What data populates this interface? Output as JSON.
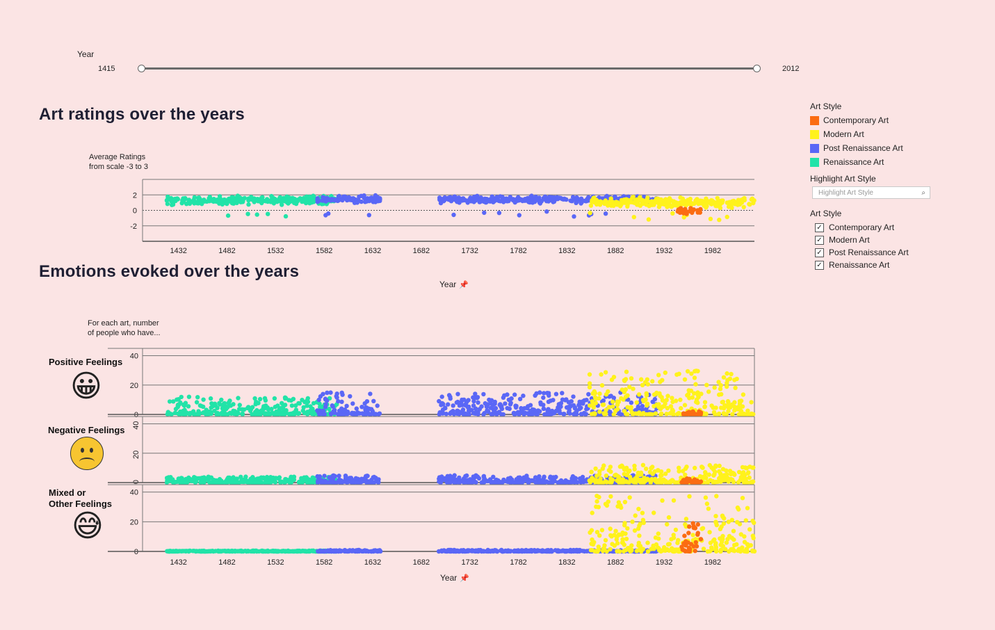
{
  "slider": {
    "label": "Year",
    "min_label": "1415",
    "max_label": "2012",
    "range": [
      1415,
      2012
    ]
  },
  "ratings_section": {
    "title": "Art ratings over the years",
    "ylabel_line1": "Average Ratings",
    "ylabel_line2": "from scale -3 to 3",
    "xlabel": "Year"
  },
  "emotions_section": {
    "title": "Emotions evoked over the years",
    "ylabel_line1": "For each art, number",
    "ylabel_line2": "of people who have...",
    "xlabel": "Year",
    "rows": [
      {
        "label_line1": "Positive Feelings",
        "label_line2": "",
        "emoji": "😀",
        "icon": "grinning-face-icon"
      },
      {
        "label_line1": "Negative Feelings",
        "label_line2": "",
        "emoji": "☹",
        "icon": "frowning-face-icon"
      },
      {
        "label_line1": "Mixed or",
        "label_line2": "Other Feelings",
        "emoji": "😅",
        "icon": "grinning-sweat-face-icon"
      }
    ]
  },
  "legend": {
    "title": "Art Style",
    "items": [
      {
        "label": "Contemporary Art",
        "color": "#fb6c12"
      },
      {
        "label": "Modern Art",
        "color": "#fff21c"
      },
      {
        "label": "Post Renaissance Art",
        "color": "#5a67f6"
      },
      {
        "label": "Renaissance Art",
        "color": "#22e3a8"
      }
    ]
  },
  "highlight": {
    "title": "Highlight Art Style",
    "placeholder": "Highlight Art Style"
  },
  "filter": {
    "title": "Art Style",
    "items": [
      {
        "label": "Contemporary Art",
        "checked": true
      },
      {
        "label": "Modern Art",
        "checked": true
      },
      {
        "label": "Post Renaissance Art",
        "checked": true
      },
      {
        "label": "Renaissance Art",
        "checked": true
      }
    ]
  },
  "chart_data": [
    {
      "type": "scatter",
      "title": "Art ratings over the years",
      "xlabel": "Year",
      "ylabel": "Average Ratings from scale -3 to 3",
      "x_ticks": [
        1432,
        1482,
        1532,
        1582,
        1632,
        1682,
        1732,
        1782,
        1832,
        1882,
        1932,
        1982
      ],
      "y_ticks": [
        2,
        0,
        -2
      ],
      "xlim": [
        1395,
        2025
      ],
      "ylim": [
        -4,
        4
      ],
      "series": [
        {
          "name": "Renaissance Art",
          "color": "#22e3a8",
          "year_range": [
            1420,
            1595
          ],
          "y_center": 1.3,
          "y_spread": 0.7
        },
        {
          "name": "Post Renaissance Art",
          "color": "#5a67f6",
          "year_range": [
            1575,
            1925
          ],
          "y_center": 1.4,
          "y_spread": 0.6,
          "gap": [
            1640,
            1700
          ]
        },
        {
          "name": "Modern Art",
          "color": "#fff21c",
          "year_range": [
            1855,
            2025
          ],
          "y_center": 1.0,
          "y_spread": 0.8
        },
        {
          "name": "Contemporary Art",
          "color": "#fb6c12",
          "year_range": [
            1945,
            1970
          ],
          "y_center": -0.2,
          "y_spread": 0.6
        }
      ]
    },
    {
      "type": "scatter",
      "title": "Emotions evoked over the years",
      "xlabel": "Year",
      "ylabel": "For each art, number of people who have...",
      "x_ticks": [
        1432,
        1482,
        1532,
        1582,
        1632,
        1682,
        1732,
        1782,
        1832,
        1882,
        1932,
        1982
      ],
      "y_ticks": [
        0,
        20,
        40
      ],
      "xlim": [
        1395,
        2025
      ],
      "ylim": [
        0,
        45
      ],
      "rows": [
        "Positive Feelings",
        "Negative Feelings",
        "Mixed or Other Feelings"
      ],
      "series": [
        {
          "name": "Renaissance Art",
          "color": "#22e3a8",
          "year_range": [
            1420,
            1595
          ],
          "levels": [
            [
              0,
              12
            ],
            [
              0,
              4
            ],
            [
              0,
              0.5
            ]
          ]
        },
        {
          "name": "Post Renaissance Art",
          "color": "#5a67f6",
          "year_range": [
            1575,
            1925
          ],
          "gap": [
            1640,
            1700
          ],
          "levels": [
            [
              0,
              15
            ],
            [
              0,
              5
            ],
            [
              0,
              1
            ]
          ]
        },
        {
          "name": "Modern Art",
          "color": "#fff21c",
          "year_range": [
            1855,
            2025
          ],
          "levels": [
            [
              0,
              30
            ],
            [
              0,
              12
            ],
            [
              0,
              38
            ]
          ]
        },
        {
          "name": "Contemporary Art",
          "color": "#fb6c12",
          "year_range": [
            1950,
            1970
          ],
          "levels": [
            [
              0,
              2
            ],
            [
              0,
              3
            ],
            [
              0,
              20
            ]
          ]
        }
      ]
    }
  ]
}
